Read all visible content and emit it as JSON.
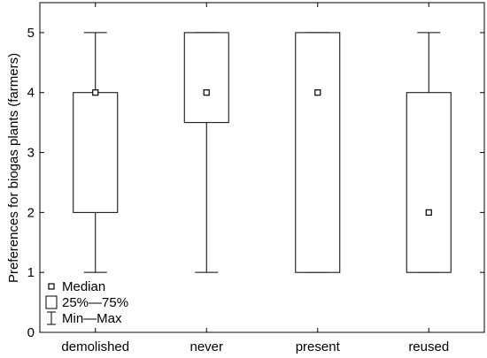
{
  "chart_data": {
    "type": "boxplot",
    "title": "",
    "xlabel": "",
    "ylabel": "Preferences for biogas plants (farmers)",
    "ylim": [
      0,
      5.5
    ],
    "yticks": [
      0,
      1,
      2,
      3,
      4,
      5
    ],
    "grid": false,
    "categories": [
      "demolished",
      "never",
      "present",
      "reused"
    ],
    "boxes": [
      {
        "category": "demolished",
        "min": 1,
        "q1": 2,
        "median": 4,
        "q3": 4,
        "max": 5
      },
      {
        "category": "never",
        "min": 1,
        "q1": 3.5,
        "median": 4,
        "q3": 5,
        "max": 5
      },
      {
        "category": "present",
        "min": 1,
        "q1": 1,
        "median": 4,
        "q3": 5,
        "max": 5
      },
      {
        "category": "reused",
        "min": 1,
        "q1": 1,
        "median": 2,
        "q3": 4,
        "max": 5
      }
    ],
    "legend": {
      "position": "bottom-left",
      "entries": [
        {
          "marker": "square",
          "label": "Median"
        },
        {
          "marker": "box",
          "label": "25%—75%"
        },
        {
          "marker": "whisker",
          "label": "Min—Max"
        }
      ]
    }
  }
}
